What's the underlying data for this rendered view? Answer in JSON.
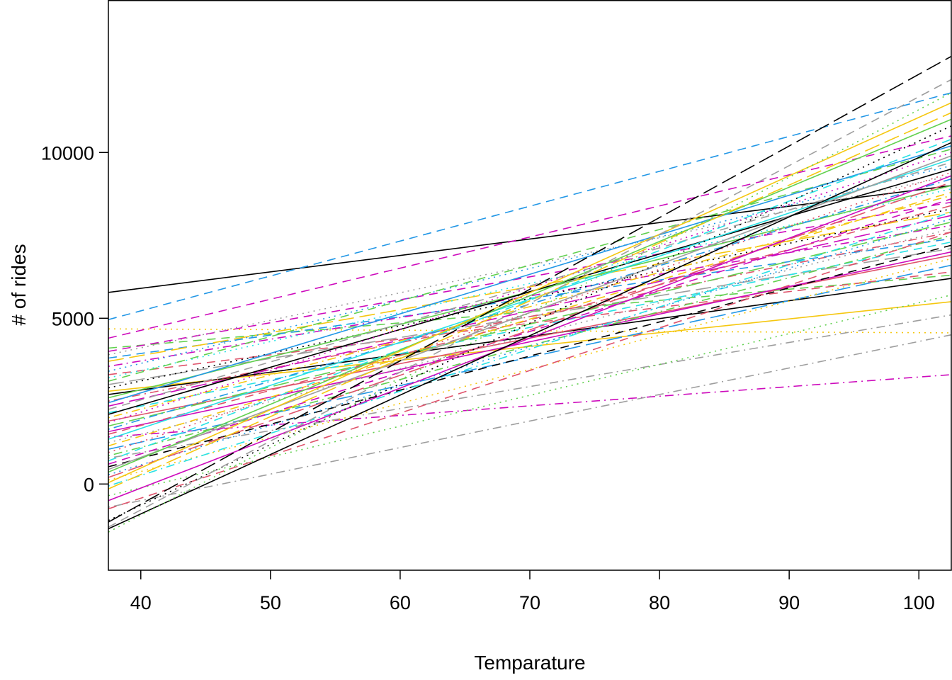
{
  "chart_data": {
    "type": "line",
    "title": "",
    "xlabel": "Temparature",
    "ylabel": "# of rides",
    "xlim": [
      37.5,
      102.5
    ],
    "ylim": [
      -2600,
      14600
    ],
    "x_ticks": [
      40,
      50,
      60,
      70,
      80,
      90,
      100
    ],
    "y_ticks": [
      0,
      5000,
      10000
    ],
    "grid": false,
    "legend": "none",
    "palette": [
      "#000000",
      "#DF536B",
      "#61D04F",
      "#2297E6",
      "#28E2E5",
      "#CD0BBC",
      "#F5C710",
      "#9E9E9E"
    ],
    "line_styles": [
      "solid",
      "dashed",
      "dotted",
      "dotdash",
      "longdash",
      "twodash"
    ],
    "series": [
      {
        "x": [
          37.5,
          102.5
        ],
        "y": [
          5780,
          9000
        ],
        "color": "#000000",
        "style": "solid"
      },
      {
        "x": [
          37.5,
          102.5
        ],
        "y": [
          4960,
          11800
        ],
        "color": "#2297E6",
        "style": "dashed"
      },
      {
        "x": [
          37.5,
          102.5
        ],
        "y": [
          4680,
          4560
        ],
        "color": "#F5C710",
        "style": "dotted"
      },
      {
        "x": [
          37.5,
          102.5
        ],
        "y": [
          4400,
          10500
        ],
        "color": "#CD0BBC",
        "style": "dashed"
      },
      {
        "x": [
          37.5,
          102.5
        ],
        "y": [
          4100,
          6300
        ],
        "color": "#61D04F",
        "style": "dashed"
      },
      {
        "x": [
          37.5,
          102.5
        ],
        "y": [
          4000,
          8500
        ],
        "color": "#CD0BBC",
        "style": "dashed"
      },
      {
        "x": [
          37.5,
          102.5
        ],
        "y": [
          3900,
          9300
        ],
        "color": "#9E9E9E",
        "style": "dotted"
      },
      {
        "x": [
          37.5,
          102.5
        ],
        "y": [
          3800,
          7400
        ],
        "color": "#2297E6",
        "style": "dashed"
      },
      {
        "x": [
          37.5,
          102.5
        ],
        "y": [
          3700,
          8200
        ],
        "color": "#F5C710",
        "style": "longdash"
      },
      {
        "x": [
          37.5,
          102.5
        ],
        "y": [
          3550,
          7800
        ],
        "color": "#CD0BBC",
        "style": "dotdash"
      },
      {
        "x": [
          37.5,
          102.5
        ],
        "y": [
          3400,
          9600
        ],
        "color": "#2297E6",
        "style": "dotted"
      },
      {
        "x": [
          37.5,
          102.5
        ],
        "y": [
          3300,
          6400
        ],
        "color": "#DF536B",
        "style": "dashed"
      },
      {
        "x": [
          37.5,
          102.5
        ],
        "y": [
          3200,
          8900
        ],
        "color": "#28E2E5",
        "style": "dotted"
      },
      {
        "x": [
          37.5,
          102.5
        ],
        "y": [
          3100,
          10100
        ],
        "color": "#61D04F",
        "style": "dashed"
      },
      {
        "x": [
          37.5,
          102.5
        ],
        "y": [
          3000,
          7100
        ],
        "color": "#9E9E9E",
        "style": "longdash"
      },
      {
        "x": [
          37.5,
          102.5
        ],
        "y": [
          2900,
          8300
        ],
        "color": "#000000",
        "style": "dotted"
      },
      {
        "x": [
          37.5,
          102.5
        ],
        "y": [
          2800,
          5500
        ],
        "color": "#F5C710",
        "style": "solid"
      },
      {
        "x": [
          37.5,
          102.5
        ],
        "y": [
          2700,
          6200
        ],
        "color": "#000000",
        "style": "solid"
      },
      {
        "x": [
          37.5,
          102.5
        ],
        "y": [
          2600,
          9000
        ],
        "color": "#61D04F",
        "style": "solid"
      },
      {
        "x": [
          37.5,
          102.5
        ],
        "y": [
          2500,
          7600
        ],
        "color": "#DF536B",
        "style": "dotdash"
      },
      {
        "x": [
          37.5,
          102.5
        ],
        "y": [
          2450,
          10200
        ],
        "color": "#2297E6",
        "style": "solid"
      },
      {
        "x": [
          37.5,
          102.5
        ],
        "y": [
          2350,
          8100
        ],
        "color": "#CD0BBC",
        "style": "longdash"
      },
      {
        "x": [
          37.5,
          102.5
        ],
        "y": [
          2250,
          9700
        ],
        "color": "#9E9E9E",
        "style": "dashed"
      },
      {
        "x": [
          37.5,
          102.5
        ],
        "y": [
          2150,
          7300
        ],
        "color": "#28E2E5",
        "style": "dashed"
      },
      {
        "x": [
          37.5,
          102.5
        ],
        "y": [
          2100,
          9500
        ],
        "color": "#000000",
        "style": "solid"
      },
      {
        "x": [
          37.5,
          102.5
        ],
        "y": [
          2000,
          8700
        ],
        "color": "#F5C710",
        "style": "dotdash"
      },
      {
        "x": [
          37.5,
          102.5
        ],
        "y": [
          1900,
          6900
        ],
        "color": "#DF536B",
        "style": "solid"
      },
      {
        "x": [
          37.5,
          102.5
        ],
        "y": [
          1850,
          10000
        ],
        "color": "#CD0BBC",
        "style": "dotted"
      },
      {
        "x": [
          37.5,
          102.5
        ],
        "y": [
          1750,
          7900
        ],
        "color": "#61D04F",
        "style": "longdash"
      },
      {
        "x": [
          37.5,
          102.5
        ],
        "y": [
          1650,
          9200
        ],
        "color": "#2297E6",
        "style": "dotdash"
      },
      {
        "x": [
          37.5,
          102.5
        ],
        "y": [
          1580,
          7000
        ],
        "color": "#CD0BBC",
        "style": "solid"
      },
      {
        "x": [
          37.5,
          102.5
        ],
        "y": [
          1500,
          8400
        ],
        "color": "#DF536B",
        "style": "dashed"
      },
      {
        "x": [
          37.5,
          102.5
        ],
        "y": [
          1420,
          3300
        ],
        "color": "#CD0BBC",
        "style": "dotdash"
      },
      {
        "x": [
          37.5,
          102.5
        ],
        "y": [
          1350,
          9800
        ],
        "color": "#28E2E5",
        "style": "solid"
      },
      {
        "x": [
          37.5,
          102.5
        ],
        "y": [
          1250,
          7700
        ],
        "color": "#9E9E9E",
        "style": "dotted"
      },
      {
        "x": [
          37.5,
          102.5
        ],
        "y": [
          1150,
          8800
        ],
        "color": "#F5C710",
        "style": "dashed"
      },
      {
        "x": [
          37.5,
          102.5
        ],
        "y": [
          1050,
          6600
        ],
        "color": "#2297E6",
        "style": "longdash"
      },
      {
        "x": [
          37.5,
          102.5
        ],
        "y": [
          950,
          9400
        ],
        "color": "#DF536B",
        "style": "dotted"
      },
      {
        "x": [
          37.5,
          102.5
        ],
        "y": [
          850,
          7500
        ],
        "color": "#61D04F",
        "style": "dotdash"
      },
      {
        "x": [
          37.5,
          102.5
        ],
        "y": [
          780,
          5100
        ],
        "color": "#9E9E9E",
        "style": "dotdash"
      },
      {
        "x": [
          37.5,
          102.5
        ],
        "y": [
          700,
          10400
        ],
        "color": "#28E2E5",
        "style": "dashed"
      },
      {
        "x": [
          37.5,
          102.5
        ],
        "y": [
          600,
          8600
        ],
        "color": "#CD0BBC",
        "style": "dashed"
      },
      {
        "x": [
          37.5,
          102.5
        ],
        "y": [
          520,
          7200
        ],
        "color": "#000000",
        "style": "dashed"
      },
      {
        "x": [
          37.5,
          102.5
        ],
        "y": [
          440,
          9900
        ],
        "color": "#9E9E9E",
        "style": "solid"
      },
      {
        "x": [
          37.5,
          102.5
        ],
        "y": [
          360,
          11000
        ],
        "color": "#61D04F",
        "style": "solid"
      },
      {
        "x": [
          37.5,
          102.5
        ],
        "y": [
          280,
          8000
        ],
        "color": "#2297E6",
        "style": "dotted"
      },
      {
        "x": [
          37.5,
          102.5
        ],
        "y": [
          200,
          9100
        ],
        "color": "#DF536B",
        "style": "longdash"
      },
      {
        "x": [
          37.5,
          102.5
        ],
        "y": [
          120,
          6800
        ],
        "color": "#F5C710",
        "style": "dotted"
      },
      {
        "x": [
          37.5,
          102.5
        ],
        "y": [
          40,
          11500
        ],
        "color": "#F5C710",
        "style": "solid"
      },
      {
        "x": [
          37.5,
          102.5
        ],
        "y": [
          -60,
          8200
        ],
        "color": "#28E2E5",
        "style": "dotdash"
      },
      {
        "x": [
          37.5,
          102.5
        ],
        "y": [
          -150,
          11200
        ],
        "color": "#F5C710",
        "style": "longdash"
      },
      {
        "x": [
          37.5,
          102.5
        ],
        "y": [
          -350,
          5700
        ],
        "color": "#61D04F",
        "style": "dotted"
      },
      {
        "x": [
          37.5,
          102.5
        ],
        "y": [
          -500,
          9300
        ],
        "color": "#CD0BBC",
        "style": "solid"
      },
      {
        "x": [
          37.5,
          102.5
        ],
        "y": [
          -700,
          4500
        ],
        "color": "#9E9E9E",
        "style": "dotdash"
      },
      {
        "x": [
          37.5,
          102.5
        ],
        "y": [
          -750,
          7600
        ],
        "color": "#DF536B",
        "style": "dashed"
      },
      {
        "x": [
          37.5,
          102.5
        ],
        "y": [
          -1100,
          10800
        ],
        "color": "#000000",
        "style": "dotted"
      },
      {
        "x": [
          37.5,
          102.5
        ],
        "y": [
          -1150,
          12900
        ],
        "color": "#000000",
        "style": "longdash"
      },
      {
        "x": [
          37.5,
          102.5
        ],
        "y": [
          -1300,
          12200
        ],
        "color": "#9E9E9E",
        "style": "dashed"
      },
      {
        "x": [
          37.5,
          102.5
        ],
        "y": [
          -1350,
          10300
        ],
        "color": "#000000",
        "style": "solid"
      },
      {
        "x": [
          37.5,
          102.5
        ],
        "y": [
          -1450,
          11800
        ],
        "color": "#61D04F",
        "style": "dotted"
      }
    ]
  }
}
